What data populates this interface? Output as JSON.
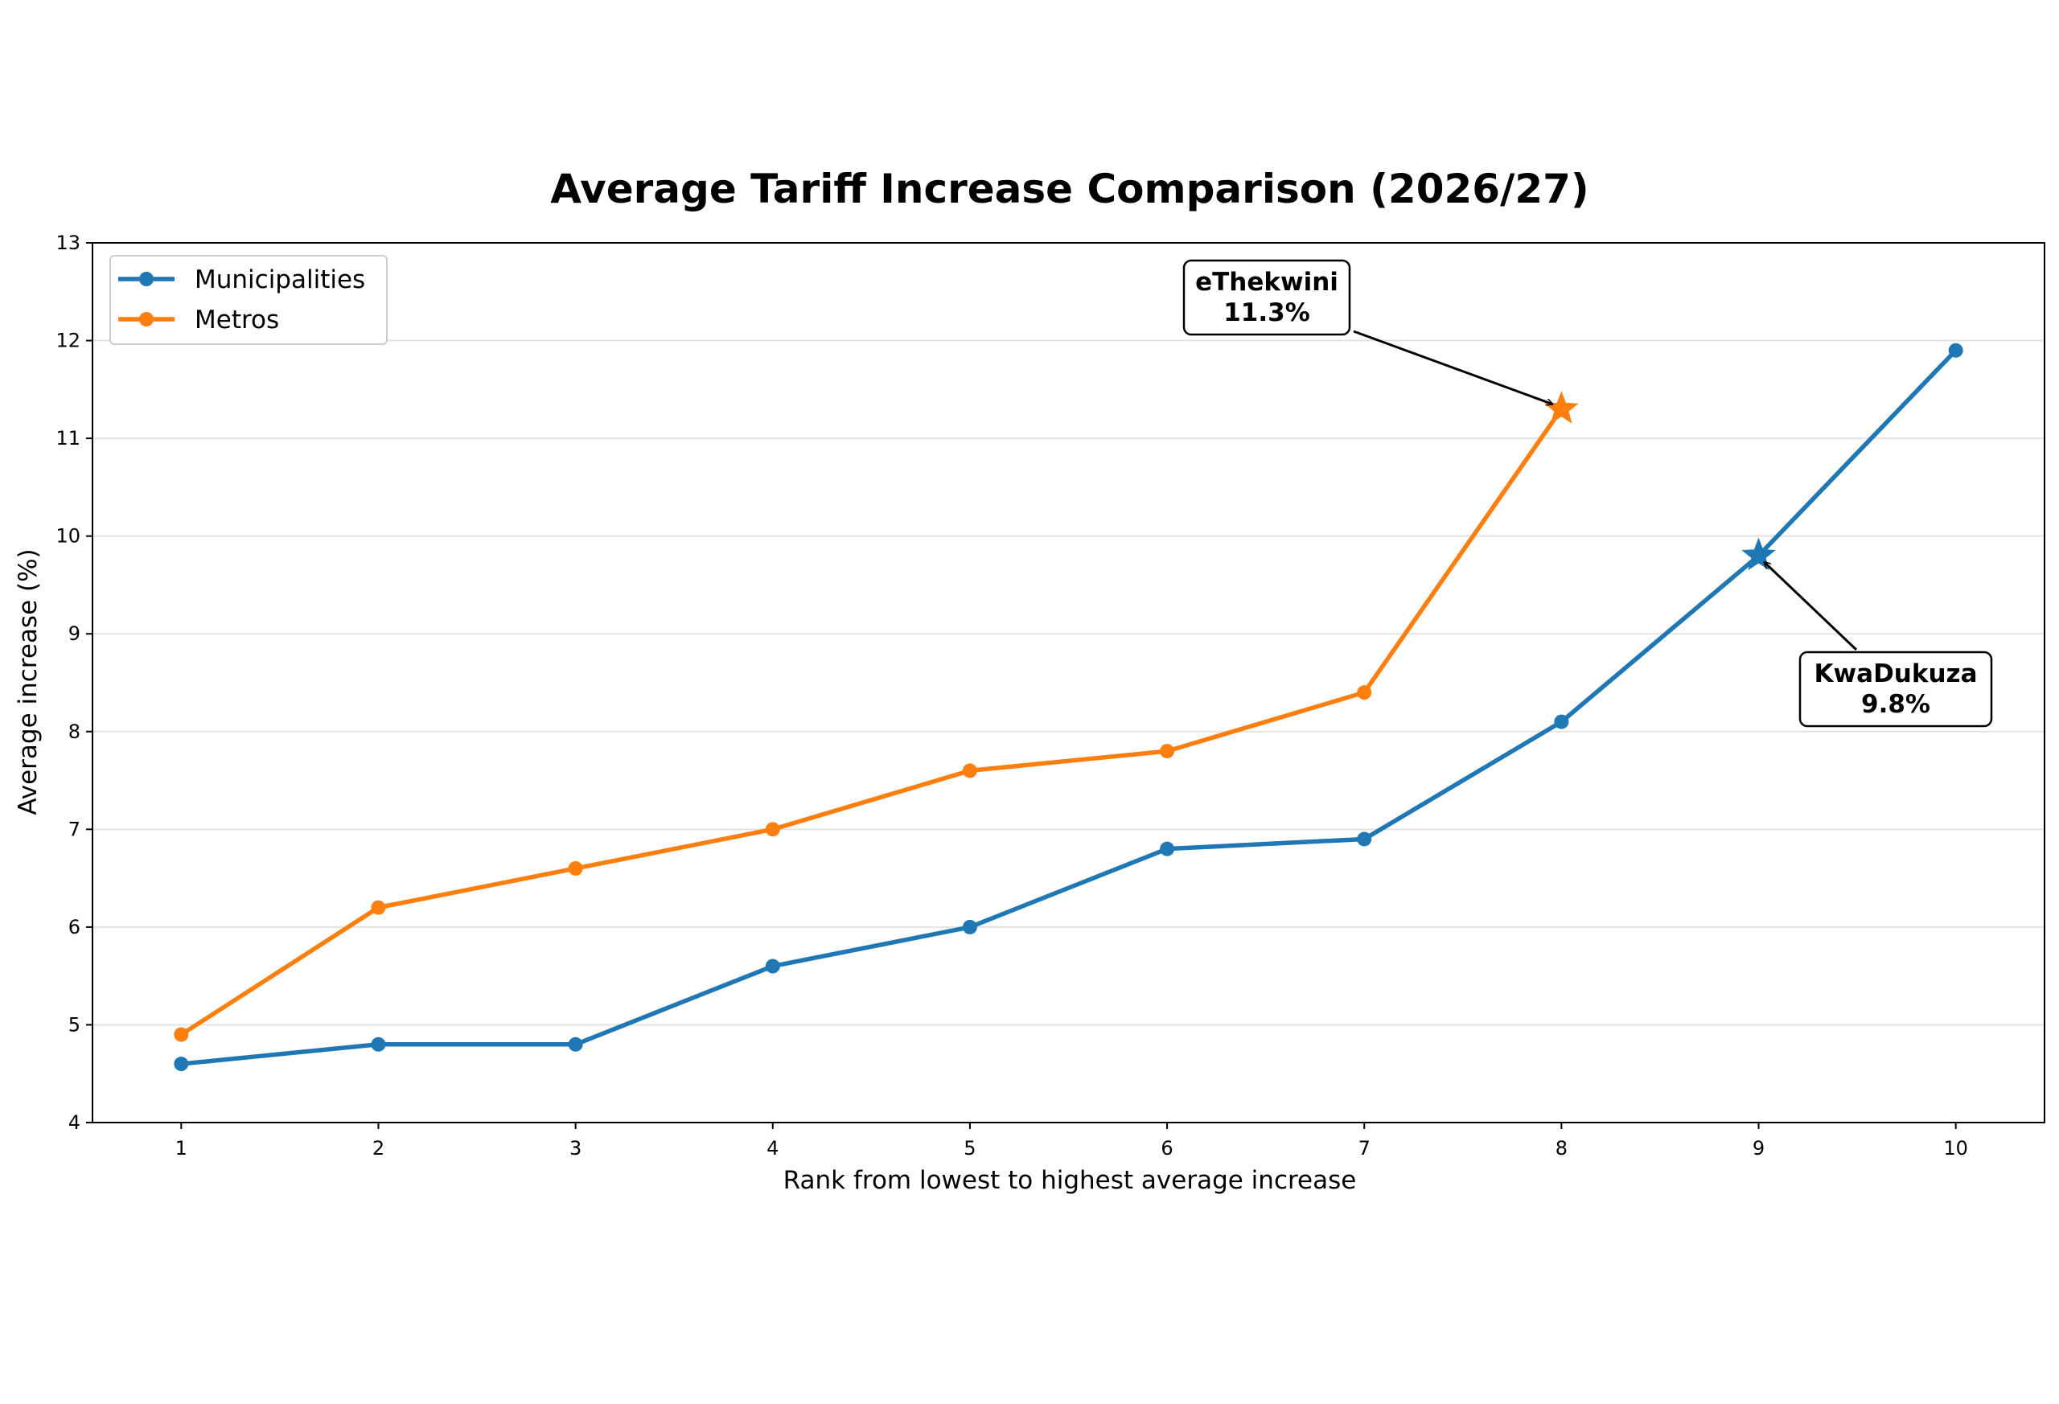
{
  "chart_data": {
    "type": "line",
    "title": "Average Tariff Increase Comparison (2026/27)",
    "xlabel": "Rank from lowest to highest average increase",
    "ylabel": "Average increase (%)",
    "x": [
      1,
      2,
      3,
      4,
      5,
      6,
      7,
      8,
      9,
      10
    ],
    "xlim": [
      0.55,
      10.45
    ],
    "ylim": [
      4,
      13
    ],
    "xticks": [
      "1",
      "2",
      "3",
      "4",
      "5",
      "6",
      "7",
      "8",
      "9",
      "10"
    ],
    "yticks": [
      "4",
      "5",
      "6",
      "7",
      "8",
      "9",
      "10",
      "11",
      "12",
      "13"
    ],
    "grid": "horizontal",
    "legend_position": "top-left",
    "series": [
      {
        "name": "Municipalities",
        "color": "#1f77b4",
        "x": [
          1,
          2,
          3,
          4,
          5,
          6,
          7,
          8,
          9,
          10
        ],
        "values": [
          4.6,
          4.8,
          4.8,
          5.6,
          6.0,
          6.8,
          6.9,
          8.1,
          9.8,
          11.9
        ],
        "highlight_index": 8
      },
      {
        "name": "Metros",
        "color": "#ff7f0e",
        "x": [
          1,
          2,
          3,
          4,
          5,
          6,
          7,
          8
        ],
        "values": [
          4.9,
          6.2,
          6.6,
          7.0,
          7.6,
          7.8,
          8.4,
          11.3
        ],
        "highlight_index": 7
      }
    ],
    "annotations": [
      {
        "lines": [
          "eThekwini",
          "11.3%"
        ],
        "series": 1,
        "point_x": 8,
        "point_y": 11.3
      },
      {
        "lines": [
          "KwaDukuza",
          "9.8%"
        ],
        "series": 0,
        "point_x": 9,
        "point_y": 9.8
      }
    ]
  }
}
